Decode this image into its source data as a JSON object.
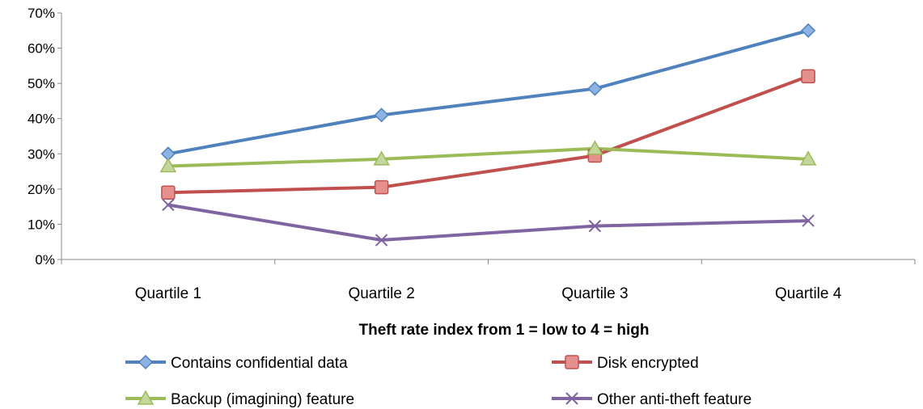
{
  "chart_data": {
    "type": "line",
    "title": "",
    "xlabel": "Theft rate index from 1 = low to 4 = high",
    "ylabel": "",
    "categories": [
      "Quartile 1",
      "Quartile 2",
      "Quartile 3",
      "Quartile 4"
    ],
    "y_ticks": [
      "0%",
      "10%",
      "20%",
      "30%",
      "40%",
      "50%",
      "60%",
      "70%"
    ],
    "ylim": [
      0,
      70
    ],
    "grid": false,
    "legend_position": "bottom",
    "series": [
      {
        "name": "Contains confidential data",
        "color": "#4F81BD",
        "marker": "diamond",
        "values": [
          30,
          41,
          48.5,
          65
        ]
      },
      {
        "name": "Disk encrypted",
        "color": "#C0504D",
        "marker": "square",
        "values": [
          19,
          20.5,
          29.5,
          52
        ]
      },
      {
        "name": "Backup (imagining) feature",
        "color": "#9BBB59",
        "marker": "triangle",
        "values": [
          26.5,
          28.5,
          31.5,
          28.5
        ]
      },
      {
        "name": "Other anti-theft feature",
        "color": "#8064A2",
        "marker": "x",
        "values": [
          15.5,
          5.5,
          9.5,
          11
        ]
      }
    ]
  }
}
